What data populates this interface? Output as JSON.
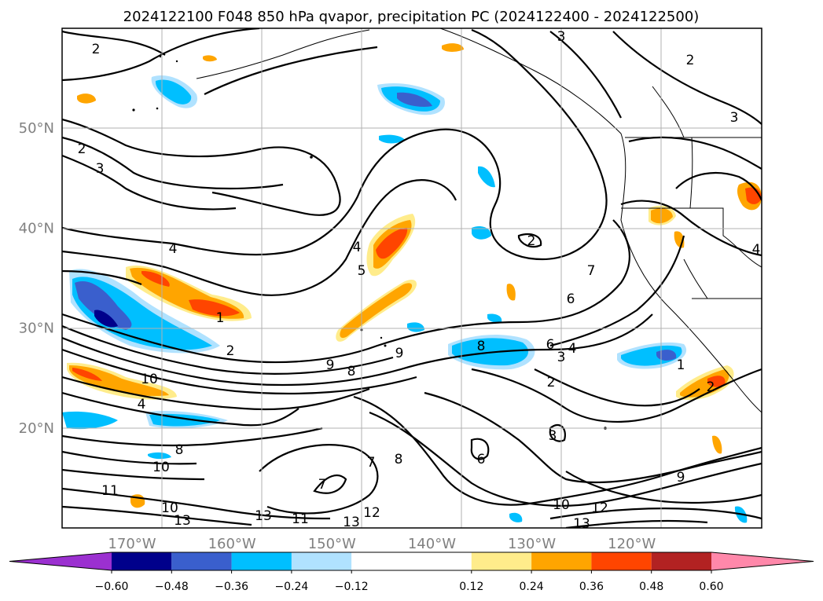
{
  "chart_data": {
    "type": "contour_map",
    "title": "2024122100 F048 850 hPa qvapor, precipitation PC (2024122400 - 2024122500)",
    "x_axis": {
      "range": [
        -177,
        -107
      ],
      "ticks": [
        -170,
        -160,
        -150,
        -140,
        -130,
        -120
      ],
      "tick_labels": [
        "170°W",
        "160°W",
        "150°W",
        "140°W",
        "130°W",
        "120°W"
      ]
    },
    "y_axis": {
      "range": [
        10,
        60
      ],
      "ticks": [
        20,
        30,
        40,
        50
      ],
      "tick_labels": [
        "20°N",
        "30°N",
        "40°N",
        "50°N"
      ]
    },
    "grid": true,
    "contour_labels": [
      "1",
      "2",
      "3",
      "4",
      "5",
      "6",
      "7",
      "8",
      "9",
      "10",
      "11",
      "12",
      "13"
    ],
    "colorbar": {
      "orientation": "horizontal",
      "extend": "both",
      "levels": [
        -0.72,
        -0.6,
        -0.48,
        -0.36,
        -0.24,
        -0.12,
        0.12,
        0.24,
        0.36,
        0.48,
        0.6,
        0.72
      ],
      "tick_values": [
        -0.6,
        -0.48,
        -0.36,
        -0.24,
        -0.12,
        0.12,
        0.24,
        0.36,
        0.48,
        0.6
      ],
      "tick_labels": [
        "−0.60",
        "−0.48",
        "−0.36",
        "−0.24",
        "−0.12",
        "0.12",
        "0.24",
        "0.36",
        "0.48",
        "0.60"
      ],
      "colors": [
        "#9b30d0",
        "#00008b",
        "#3a5fcd",
        "#00bfff",
        "#b0e2ff",
        "#ffffff",
        "#ffec8b",
        "#ffa500",
        "#ff4500",
        "#b22222",
        "#ff88aa"
      ]
    }
  }
}
